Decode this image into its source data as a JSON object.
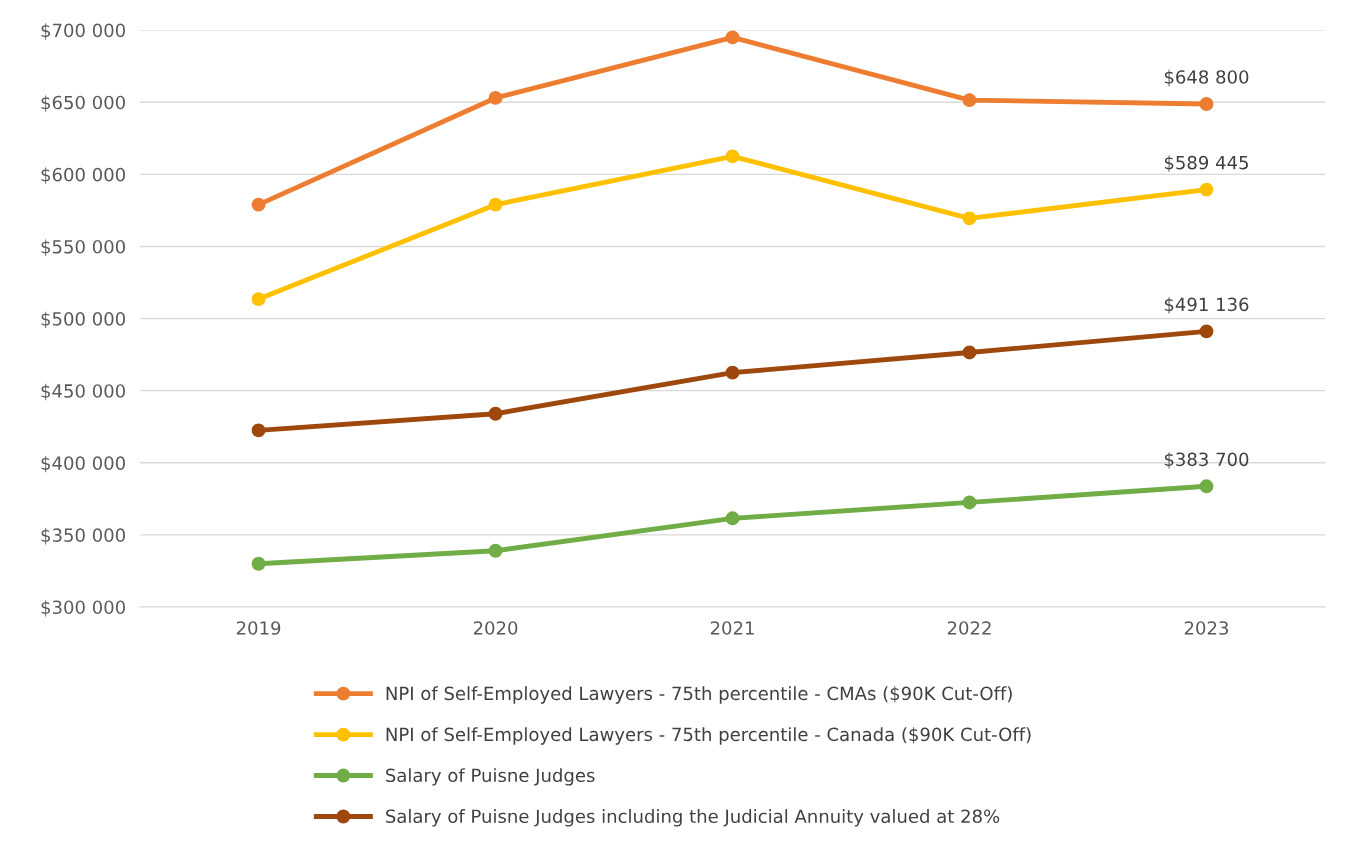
{
  "chart_data": {
    "type": "line",
    "categories": [
      "2019",
      "2020",
      "2021",
      "2022",
      "2023"
    ],
    "series": [
      {
        "name": "NPI of Self-Employed Lawyers - 75th percentile - CMAs ($90K Cut-Off)",
        "color": "#ed7d31",
        "values": [
          579000,
          653000,
          695000,
          651500,
          648800
        ],
        "value_labels": [
          null,
          null,
          null,
          null,
          "$648 800"
        ]
      },
      {
        "name": "NPI of Self-Employed Lawyers - 75th percentile - Canada ($90K Cut-Off)",
        "color": "#ffc000",
        "values": [
          513500,
          579000,
          612500,
          569500,
          589445
        ],
        "value_labels": [
          null,
          null,
          null,
          null,
          "$589 445"
        ]
      },
      {
        "name": "Salary of Puisne Judges",
        "color": "#70ad47",
        "values": [
          330000,
          339000,
          361500,
          372500,
          383700
        ],
        "value_labels": [
          null,
          null,
          null,
          null,
          "$383 700"
        ]
      },
      {
        "name": "Salary of Puisne Judges including the Judicial Annuity valued at 28%",
        "color": "#9e480e",
        "values": [
          422500,
          434000,
          462500,
          476500,
          491136
        ],
        "value_labels": [
          null,
          null,
          null,
          null,
          "$491 136"
        ]
      }
    ],
    "ylim": [
      300000,
      700000
    ],
    "yticks": [
      {
        "value": 300000,
        "label": "$300 000"
      },
      {
        "value": 350000,
        "label": "$350 000"
      },
      {
        "value": 400000,
        "label": "$400 000"
      },
      {
        "value": 450000,
        "label": "$450 000"
      },
      {
        "value": 500000,
        "label": "$500 000"
      },
      {
        "value": 550000,
        "label": "$550 000"
      },
      {
        "value": 600000,
        "label": "$600 000"
      },
      {
        "value": 650000,
        "label": "$650 000"
      },
      {
        "value": 700000,
        "label": "$700 000"
      }
    ],
    "grid": "y",
    "legend": "bottom",
    "marker": "circle",
    "line_style": "solid"
  }
}
